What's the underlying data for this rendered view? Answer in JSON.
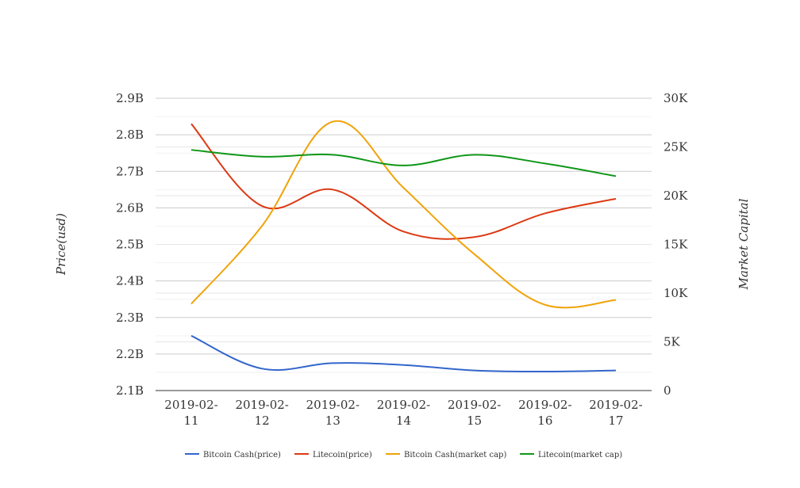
{
  "chart_data": {
    "type": "line",
    "categories": [
      "2019-02-11",
      "2019-02-12",
      "2019-02-13",
      "2019-02-14",
      "2019-02-15",
      "2019-02-16",
      "2019-02-17"
    ],
    "category_lines": [
      [
        "2019-02-",
        "11"
      ],
      [
        "2019-02-",
        "12"
      ],
      [
        "2019-02-",
        "13"
      ],
      [
        "2019-02-",
        "14"
      ],
      [
        "2019-02-",
        "15"
      ],
      [
        "2019-02-",
        "16"
      ],
      [
        "2019-02-",
        "17"
      ]
    ],
    "ylabel_left": "Price(usd)",
    "ylabel_right": "Market Capital",
    "left_axis": {
      "ylim": [
        2100000000,
        2900000000
      ],
      "ticks": [
        2100000000,
        2200000000,
        2300000000,
        2400000000,
        2500000000,
        2600000000,
        2700000000,
        2800000000,
        2900000000
      ],
      "tick_labels": [
        "2.1B",
        "2.2B",
        "2.3B",
        "2.4B",
        "2.5B",
        "2.6B",
        "2.7B",
        "2.8B",
        "2.9B"
      ]
    },
    "right_axis": {
      "ylim": [
        0,
        30000
      ],
      "ticks": [
        0,
        5000,
        10000,
        15000,
        20000,
        25000,
        30000
      ],
      "tick_labels": [
        "0",
        "5K",
        "10K",
        "15K",
        "20K",
        "25K",
        "30K"
      ]
    },
    "grid": true,
    "legend_position": "bottom",
    "series": [
      {
        "name": "Bitcoin Cash(price)",
        "axis": "left",
        "color": "#3366cc",
        "values": [
          2250000000,
          2160000000,
          2175000000,
          2170000000,
          2155000000,
          2152000000,
          2155000000
        ]
      },
      {
        "name": "Litecoin(price)",
        "axis": "left",
        "color": "#dc3912",
        "values": [
          2830000000,
          2605000000,
          2650000000,
          2535000000,
          2520000000,
          2585000000,
          2625000000
        ]
      },
      {
        "name": "Bitcoin Cash(market cap)",
        "axis": "right",
        "color": "#f0a30a",
        "values": [
          8900,
          16900,
          27600,
          20800,
          14000,
          8800,
          9300
        ]
      },
      {
        "name": "Litecoin(market cap)",
        "axis": "right",
        "color": "#109618",
        "values": [
          24700,
          24000,
          24200,
          23100,
          24200,
          23300,
          22000
        ]
      }
    ]
  }
}
